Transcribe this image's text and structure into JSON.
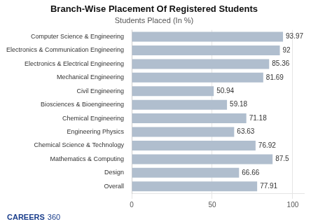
{
  "chart_data": {
    "type": "bar",
    "orientation": "horizontal",
    "title": "Branch-Wise Placement Of Registered Students",
    "subtitle": "Students Placed (In %)",
    "categories": [
      "Overall",
      "Design",
      "Mathematics & Computing",
      "Chemical Science & Technology",
      "Engineering Physics",
      "Chemical Engineering",
      "Biosciences & Bioengineering",
      "Civil Engineering",
      "Mechanical Engineering",
      "Electronics & Electrical Engineering",
      "Electronics & Communication Engineering",
      "Computer Science & Engineering"
    ],
    "values": [
      77.91,
      66.66,
      87.5,
      76.92,
      63.63,
      71.18,
      59.18,
      50.94,
      81.69,
      85.36,
      92,
      93.97
    ],
    "color": "#b0bece",
    "xlim": [
      0,
      107
    ],
    "xticks": [
      0,
      50,
      100
    ],
    "grid": true,
    "data_labels": true,
    "annotations": [
      {
        "text": "CAREERS",
        "color": "#1a3e8c"
      },
      {
        "text": "360",
        "color": "#1a3e8c"
      }
    ]
  }
}
